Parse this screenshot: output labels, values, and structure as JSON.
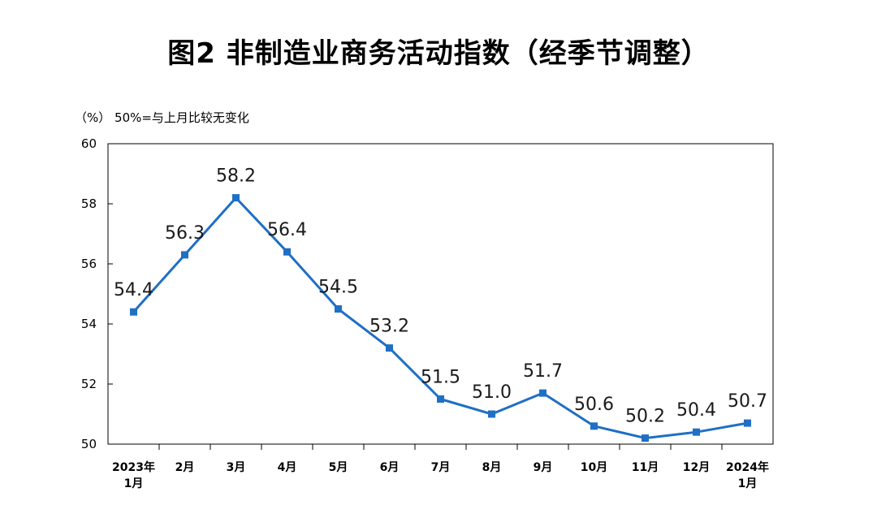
{
  "chart_data": {
    "type": "line",
    "title": "图2  非制造业商务活动指数（经季节调整）",
    "unit_note": "（%）  50%=与上月比较无变化",
    "ylim": [
      50,
      60
    ],
    "yticks": [
      "50",
      "52",
      "54",
      "56",
      "58",
      "60"
    ],
    "categories": [
      [
        "2023年",
        "1月"
      ],
      [
        "2月"
      ],
      [
        "3月"
      ],
      [
        "4月"
      ],
      [
        "5月"
      ],
      [
        "6月"
      ],
      [
        "7月"
      ],
      [
        "8月"
      ],
      [
        "9月"
      ],
      [
        "10月"
      ],
      [
        "11月"
      ],
      [
        "12月"
      ],
      [
        "2024年",
        "1月"
      ]
    ],
    "values": [
      54.4,
      56.3,
      58.2,
      56.4,
      54.5,
      53.2,
      51.5,
      51.0,
      51.7,
      50.6,
      50.2,
      50.4,
      50.7
    ],
    "labels": [
      "54.4",
      "56.3",
      "58.2",
      "56.4",
      "54.5",
      "53.2",
      "51.5",
      "51.0",
      "51.7",
      "50.6",
      "50.2",
      "50.4",
      "50.7"
    ],
    "line_color": "#1f6fc5",
    "grid": false
  }
}
